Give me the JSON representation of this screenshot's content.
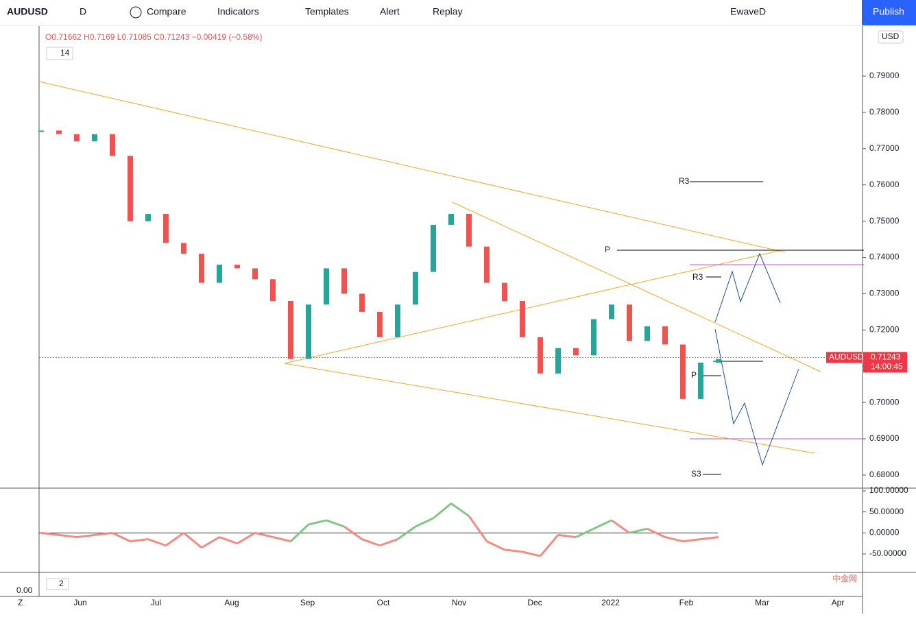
{
  "toolbar": {
    "symbol": "AUDUSD",
    "interval": "D",
    "compare": "Compare",
    "indicators": "Indicators",
    "templates": "Templates",
    "alert": "Alert",
    "replay": "Replay",
    "layout": "EwaveD",
    "publish": "Publish"
  },
  "legend": {
    "o_label": "O",
    "o": 0.71662,
    "h_label": "H",
    "h": 0.7169,
    "l_label": "L",
    "l": 0.71085,
    "c_label": "C",
    "c": 0.71243,
    "change": "−0.00419 (−0.58%)",
    "study_input": "14",
    "study2_input": "2"
  },
  "currency": "USD",
  "price_tag": {
    "symbol": "AUDUSD",
    "price": 0.71243,
    "countdown": "14:00:45"
  },
  "drawings": {
    "labels": [
      "R3",
      "P",
      "R3",
      "P",
      "S3"
    ]
  },
  "corner": {
    "z": "Z",
    "zero": "0.00"
  },
  "watermark": "中金网",
  "chart_data": {
    "type": "candlestick",
    "months": [
      "Jun",
      "Jul",
      "Aug",
      "Sep",
      "Oct",
      "Nov",
      "Dec",
      "2022",
      "Feb",
      "Mar",
      "Apr"
    ],
    "close": [
      0.775,
      0.774,
      0.772,
      0.774,
      0.768,
      0.75,
      0.752,
      0.744,
      0.741,
      0.733,
      0.738,
      0.737,
      0.734,
      0.728,
      0.712,
      0.727,
      0.737,
      0.73,
      0.725,
      0.718,
      0.727,
      0.736,
      0.749,
      0.752,
      0.743,
      0.733,
      0.728,
      0.718,
      0.708,
      0.715,
      0.713,
      0.723,
      0.727,
      0.717,
      0.721,
      0.716,
      0.701,
      0.711,
      0.712
    ],
    "up_color": "#26a69a",
    "down_color": "#ef5350",
    "ylim": [
      0.6764,
      0.8038
    ],
    "yticks": [
      {
        "value": 0.68,
        "label": "0.68000"
      },
      {
        "value": 0.69,
        "label": "0.69000"
      },
      {
        "value": 0.7,
        "label": "0.70000"
      },
      {
        "value": 0.71,
        "label": "0.71000"
      },
      {
        "value": 0.72,
        "label": "0.72000"
      },
      {
        "value": 0.73,
        "label": "0.73000"
      },
      {
        "value": 0.74,
        "label": "0.74000"
      },
      {
        "value": 0.75,
        "label": "0.75000"
      },
      {
        "value": 0.76,
        "label": "0.76000"
      },
      {
        "value": 0.77,
        "label": "0.77000"
      },
      {
        "value": 0.78,
        "label": "0.78000"
      },
      {
        "value": 0.79,
        "label": "0.79000"
      }
    ],
    "oscillator": {
      "values": [
        0,
        -5,
        -10,
        -5,
        0,
        -20,
        -15,
        -30,
        0,
        -35,
        -10,
        -25,
        0,
        -10,
        -20,
        20,
        30,
        15,
        -15,
        -30,
        -15,
        15,
        35,
        70,
        40,
        -20,
        -40,
        -45,
        -55,
        -5,
        -10,
        10,
        30,
        0,
        10,
        -10,
        -20,
        -15,
        -10
      ],
      "ylim": [
        -94,
        106.5
      ],
      "yticks": [
        {
          "value": 100,
          "label": "100.00000"
        },
        {
          "value": 50,
          "label": "50.00000"
        },
        {
          "value": 0,
          "label": "0.00000"
        },
        {
          "value": -50,
          "label": "-50.00000"
        }
      ]
    }
  }
}
